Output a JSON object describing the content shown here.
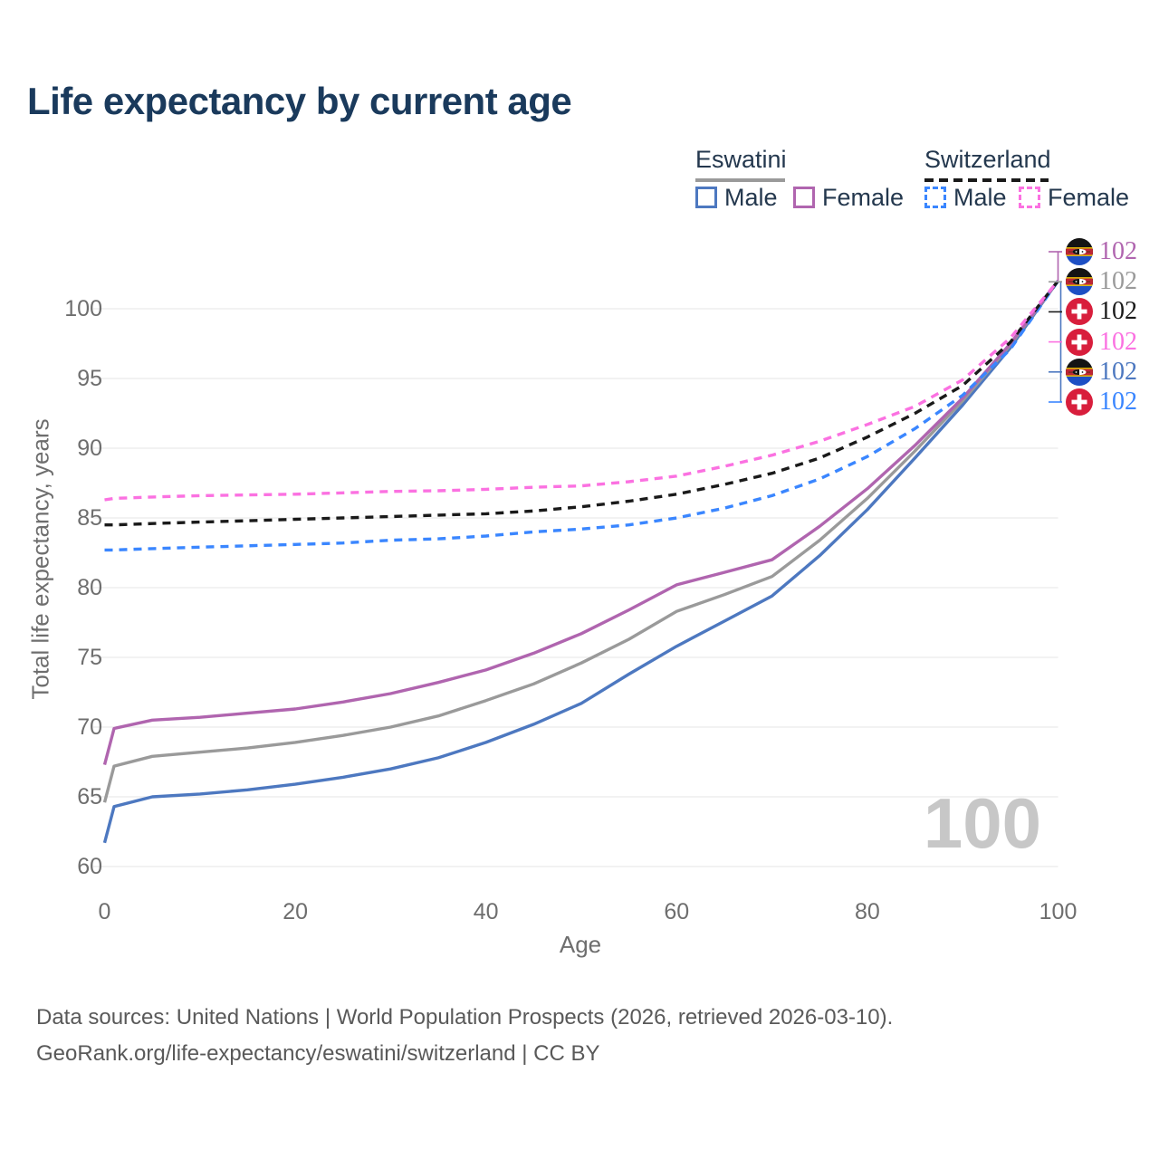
{
  "title": "Life expectancy by current age",
  "legend": {
    "eswatini": {
      "label": "Eswatini",
      "male": "Male",
      "female": "Female"
    },
    "switzerland": {
      "label": "Switzerland",
      "male": "Male",
      "female": "Female"
    }
  },
  "watermark": "100",
  "footer": {
    "line1": "Data sources: United Nations | World Population Prospects (2026, retrieved 2026-03-10).",
    "line2": "GeoRank.org/life-expectancy/eswatini/switzerland | CC BY"
  },
  "colors": {
    "title_text": "#1a3a5c",
    "legend_text": "#24384e",
    "axis_text": "#6e6e6e",
    "gridline": "#e9e9e9",
    "watermark": "#c7c7c7",
    "footer_text": "#595959",
    "eswatini_male": "#4d78c0",
    "eswatini_combined": "#9a9a9a",
    "eswatini_female": "#b065af",
    "switzerland_male": "#3a86ff",
    "switzerland_combined": "#1a1a1a",
    "switzerland_female": "#fb71e1"
  },
  "end_labels": [
    {
      "flag": "eswatini",
      "value": "102",
      "color": "#b065af"
    },
    {
      "flag": "eswatini",
      "value": "102",
      "color": "#9a9a9a"
    },
    {
      "flag": "switzerland",
      "value": "102",
      "color": "#1a1a1a"
    },
    {
      "flag": "switzerland",
      "value": "102",
      "color": "#fb71e1"
    },
    {
      "flag": "eswatini",
      "value": "102",
      "color": "#4d78c0"
    },
    {
      "flag": "switzerland",
      "value": "102",
      "color": "#3a86ff"
    }
  ],
  "chart_data": {
    "type": "line",
    "title": "Life expectancy by current age",
    "xlabel": "Age",
    "ylabel": "Total life expectancy, years",
    "xlim": [
      0,
      100
    ],
    "ylim": [
      58,
      103
    ],
    "x_ticks": [
      0,
      20,
      40,
      60,
      80,
      100
    ],
    "y_ticks": [
      60,
      65,
      70,
      75,
      80,
      85,
      90,
      95,
      100
    ],
    "grid": "horizontal",
    "legend_position": "top-right",
    "x": [
      0,
      1,
      5,
      10,
      15,
      20,
      25,
      30,
      35,
      40,
      45,
      50,
      55,
      60,
      65,
      70,
      75,
      80,
      85,
      90,
      95,
      100
    ],
    "series": [
      {
        "name": "Eswatini Male",
        "country": "Eswatini",
        "sex": "Male",
        "style": "solid",
        "color": "#4d78c0",
        "values": [
          61.7,
          64.3,
          65.0,
          65.2,
          65.5,
          65.9,
          66.4,
          67.0,
          67.8,
          68.9,
          70.2,
          71.7,
          73.8,
          75.8,
          77.6,
          79.4,
          82.3,
          85.6,
          89.3,
          93.1,
          97.2,
          102
        ]
      },
      {
        "name": "Eswatini Combined",
        "country": "Eswatini",
        "sex": "Combined",
        "style": "solid",
        "color": "#9a9a9a",
        "values": [
          64.6,
          67.2,
          67.9,
          68.2,
          68.5,
          68.9,
          69.4,
          70.0,
          70.8,
          71.9,
          73.1,
          74.6,
          76.3,
          78.3,
          79.5,
          80.8,
          83.4,
          86.4,
          89.8,
          93.4,
          97.4,
          102
        ]
      },
      {
        "name": "Eswatini Female",
        "country": "Eswatini",
        "sex": "Female",
        "style": "solid",
        "color": "#b065af",
        "values": [
          67.3,
          69.9,
          70.5,
          70.7,
          71.0,
          71.3,
          71.8,
          72.4,
          73.2,
          74.1,
          75.3,
          76.7,
          78.4,
          80.2,
          81.1,
          82.0,
          84.4,
          87.1,
          90.2,
          93.6,
          97.5,
          102
        ]
      },
      {
        "name": "Switzerland Male",
        "country": "Switzerland",
        "sex": "Male",
        "style": "dashed",
        "color": "#3a86ff",
        "values": [
          82.7,
          82.7,
          82.8,
          82.9,
          83.0,
          83.1,
          83.2,
          83.4,
          83.5,
          83.7,
          84.0,
          84.2,
          84.5,
          85.0,
          85.7,
          86.6,
          87.8,
          89.4,
          91.4,
          93.8,
          97.1,
          102
        ]
      },
      {
        "name": "Switzerland Combined",
        "country": "Switzerland",
        "sex": "Combined",
        "style": "dashed",
        "color": "#1a1a1a",
        "values": [
          84.5,
          84.5,
          84.6,
          84.7,
          84.8,
          84.9,
          85.0,
          85.1,
          85.2,
          85.3,
          85.5,
          85.8,
          86.2,
          86.7,
          87.4,
          88.2,
          89.3,
          90.8,
          92.5,
          94.5,
          97.6,
          102
        ]
      },
      {
        "name": "Switzerland Female",
        "country": "Switzerland",
        "sex": "Female",
        "style": "dashed",
        "color": "#fb71e1",
        "values": [
          86.3,
          86.4,
          86.5,
          86.6,
          86.65,
          86.7,
          86.8,
          86.9,
          86.95,
          87.05,
          87.2,
          87.3,
          87.6,
          88.0,
          88.7,
          89.5,
          90.5,
          91.7,
          93.0,
          94.9,
          97.9,
          102
        ]
      }
    ]
  }
}
